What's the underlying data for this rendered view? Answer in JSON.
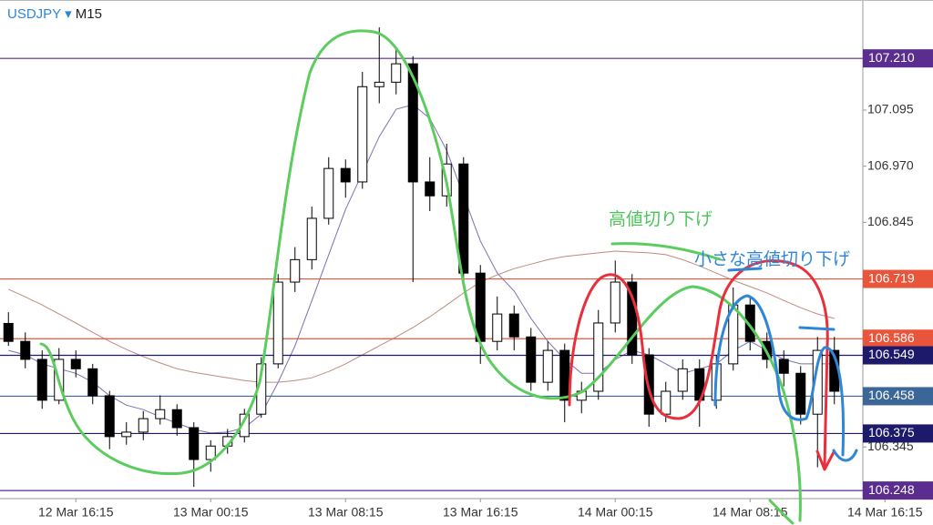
{
  "chart_data": {
    "type": "candlestick",
    "symbol": "USDJPY",
    "timeframe": "M15",
    "categories": [
      null,
      null,
      null,
      null,
      "12 Mar 16:15",
      null,
      null,
      null,
      null,
      null,
      null,
      null,
      "13 Mar 00:15",
      null,
      null,
      null,
      null,
      null,
      null,
      null,
      "13 Mar 08:15",
      null,
      null,
      null,
      null,
      null,
      null,
      null,
      "13 Mar 16:15",
      null,
      null,
      null,
      null,
      null,
      null,
      null,
      "14 Mar 00:15",
      null,
      null,
      null,
      null,
      null,
      null,
      null,
      "14 Mar 08:15",
      null,
      null,
      null,
      null,
      null,
      null,
      null,
      "14 Mar 16:15"
    ],
    "open": [
      106.62,
      106.58,
      106.54,
      106.449,
      106.54,
      106.519,
      106.459,
      106.368,
      106.378,
      106.408,
      106.428,
      106.388,
      106.317,
      106.347,
      106.368,
      106.418,
      106.53,
      106.712,
      106.762,
      106.854,
      106.965,
      106.935,
      107.147,
      107.157,
      107.198,
      106.935,
      106.904,
      106.975,
      106.732,
      106.58,
      106.641,
      106.59,
      106.489,
      106.56,
      106.449,
      106.469,
      106.621,
      106.712,
      106.55,
      106.418,
      106.469,
      106.519,
      106.449,
      106.53,
      106.661,
      106.58,
      106.54,
      106.509,
      106.418,
      106.56,
      null,
      null,
      null
    ],
    "high": [
      106.645,
      106.6,
      106.56,
      106.565,
      106.56,
      106.53,
      106.47,
      106.4,
      106.425,
      106.46,
      106.44,
      106.4,
      106.36,
      106.385,
      106.43,
      106.545,
      106.73,
      106.79,
      106.88,
      106.99,
      106.985,
      107.18,
      107.279,
      107.23,
      107.215,
      106.99,
      107.02,
      106.99,
      106.75,
      106.68,
      106.66,
      106.61,
      106.58,
      106.575,
      106.49,
      106.65,
      106.76,
      106.73,
      106.565,
      106.49,
      106.54,
      106.54,
      106.55,
      106.7,
      106.68,
      106.6,
      106.56,
      106.525,
      106.59,
      106.59,
      null,
      null,
      null
    ],
    "low": [
      106.57,
      106.52,
      106.43,
      106.44,
      106.5,
      106.44,
      106.34,
      106.35,
      106.36,
      106.395,
      106.37,
      106.256,
      106.29,
      106.33,
      106.355,
      106.41,
      106.52,
      106.69,
      106.74,
      106.84,
      106.9,
      106.92,
      107.11,
      107.13,
      106.712,
      106.87,
      106.88,
      106.7,
      106.53,
      106.56,
      106.56,
      106.47,
      106.47,
      106.4,
      106.42,
      106.45,
      106.6,
      106.53,
      106.39,
      106.4,
      106.45,
      106.39,
      106.43,
      106.515,
      106.56,
      106.52,
      106.48,
      106.395,
      106.3,
      106.44,
      null,
      null,
      null
    ],
    "close": [
      106.58,
      106.54,
      106.449,
      106.54,
      106.519,
      106.459,
      106.368,
      106.378,
      106.408,
      106.428,
      106.388,
      106.317,
      106.347,
      106.368,
      106.418,
      106.53,
      106.712,
      106.762,
      106.854,
      106.965,
      106.935,
      107.147,
      107.157,
      107.198,
      106.935,
      106.904,
      106.975,
      106.732,
      106.58,
      106.641,
      106.59,
      106.489,
      106.56,
      106.449,
      106.469,
      106.621,
      106.712,
      106.55,
      106.418,
      106.469,
      106.519,
      106.449,
      106.53,
      106.661,
      106.58,
      106.54,
      106.509,
      106.418,
      106.56,
      106.469,
      null,
      null,
      null
    ],
    "overlays": [
      {
        "color": "#7b70b0",
        "values": [
          106.56,
          106.55,
          106.53,
          106.519,
          106.509,
          106.489,
          106.459,
          106.438,
          106.428,
          106.412,
          106.398,
          106.384,
          106.376,
          106.378,
          106.388,
          106.418,
          106.489,
          106.57,
          106.671,
          106.773,
          106.874,
          106.955,
          107.036,
          107.097,
          107.107,
          107.076,
          107.005,
          106.904,
          106.803,
          106.732,
          106.692,
          106.631,
          106.58,
          106.54,
          106.509,
          106.509,
          106.54,
          106.56,
          106.55,
          106.53,
          106.509,
          106.519,
          106.53,
          106.56,
          106.58,
          106.56,
          106.54,
          106.53,
          106.53,
          106.53,
          null,
          null,
          null
        ]
      },
      {
        "color": "#c08a80",
        "values": [
          106.696,
          106.679,
          106.661,
          106.641,
          106.621,
          106.6,
          106.58,
          106.562,
          106.546,
          106.532,
          106.519,
          106.511,
          106.505,
          106.499,
          106.493,
          106.489,
          106.489,
          106.493,
          106.499,
          106.513,
          106.53,
          106.55,
          106.57,
          106.59,
          106.611,
          106.635,
          106.661,
          106.688,
          106.712,
          106.728,
          106.742,
          106.752,
          106.762,
          106.769,
          106.773,
          106.777,
          106.781,
          106.779,
          106.777,
          106.773,
          106.762,
          106.748,
          106.732,
          106.716,
          106.702,
          106.688,
          106.671,
          106.655,
          106.641,
          106.631,
          null,
          null,
          null
        ]
      }
    ],
    "ylim": [
      106.23,
      107.34
    ],
    "yticks": [
      107.095,
      {
        "value": 106.97,
        "label": "106.970"
      },
      106.845,
      106.345
    ],
    "levels": [
      {
        "value": 107.21,
        "label": "107.210",
        "color": "#5b2d8e"
      },
      {
        "value": 106.719,
        "label": "106.719",
        "color": "#e8553b"
      },
      {
        "value": 106.586,
        "label": "106.586",
        "color": "#e8553b"
      },
      {
        "value": 106.549,
        "label": "106.549",
        "color": "#1d1a6b"
      },
      {
        "value": 106.458,
        "label": "106.458",
        "color": "#3a6797"
      },
      {
        "value": 106.375,
        "label": "106.375",
        "color": "#1d1a6b"
      },
      {
        "value": 106.248,
        "label": "106.248",
        "color": "#5b2d8e"
      }
    ],
    "annotations": [
      {
        "text": "高値切り下げ",
        "color": "#4cc45a"
      },
      {
        "text": "小さな高値切り下げ",
        "color": "#2f86d6"
      }
    ]
  }
}
